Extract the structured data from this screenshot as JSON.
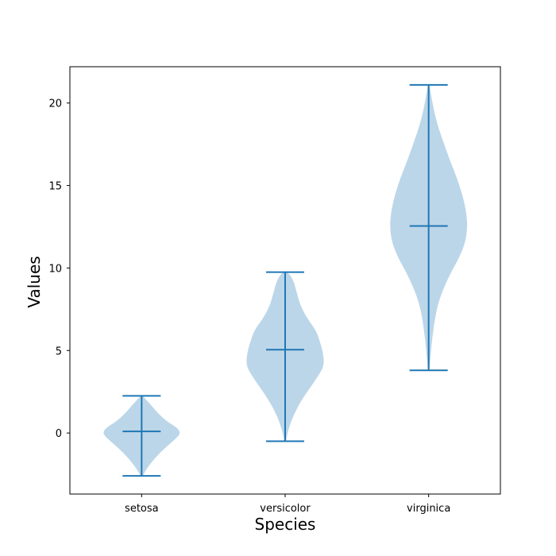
{
  "chart_data": {
    "type": "violin",
    "title": "",
    "xlabel": "Species",
    "ylabel": "Values",
    "categories": [
      "setosa",
      "versicolor",
      "virginica"
    ],
    "ylim": [
      -3.7,
      22.2
    ],
    "yticks": [
      0,
      5,
      10,
      15,
      20
    ],
    "ytick_labels": [
      "0",
      "5",
      "10",
      "15",
      "20"
    ],
    "grid": false,
    "colors": {
      "body": "#bcd6e9",
      "lines": "#1f77b4"
    },
    "series": [
      {
        "category": "setosa",
        "min": -2.6,
        "max": 2.25,
        "median": 0.1,
        "profile": [
          [
            -2.6,
            0.03
          ],
          [
            -2.2,
            0.12
          ],
          [
            -1.7,
            0.28
          ],
          [
            -1.2,
            0.47
          ],
          [
            -0.7,
            0.7
          ],
          [
            -0.3,
            0.9
          ],
          [
            0.0,
            1.0
          ],
          [
            0.3,
            0.92
          ],
          [
            0.6,
            0.72
          ],
          [
            0.9,
            0.55
          ],
          [
            1.3,
            0.38
          ],
          [
            1.7,
            0.24
          ],
          [
            2.0,
            0.12
          ],
          [
            2.25,
            0.03
          ]
        ]
      },
      {
        "category": "versicolor",
        "min": -0.5,
        "max": 9.75,
        "median": 5.05,
        "profile": [
          [
            -0.5,
            0.02
          ],
          [
            0.2,
            0.08
          ],
          [
            1.0,
            0.2
          ],
          [
            2.0,
            0.42
          ],
          [
            3.0,
            0.72
          ],
          [
            3.8,
            0.94
          ],
          [
            4.2,
            1.0
          ],
          [
            4.8,
            0.98
          ],
          [
            5.5,
            0.9
          ],
          [
            6.2,
            0.8
          ],
          [
            7.0,
            0.55
          ],
          [
            7.8,
            0.38
          ],
          [
            8.5,
            0.3
          ],
          [
            9.2,
            0.22
          ],
          [
            9.75,
            0.08
          ]
        ]
      },
      {
        "category": "virginica",
        "min": 3.8,
        "max": 21.1,
        "median": 12.55,
        "profile": [
          [
            3.8,
            0.02
          ],
          [
            5.0,
            0.06
          ],
          [
            6.5,
            0.13
          ],
          [
            8.0,
            0.25
          ],
          [
            9.5,
            0.52
          ],
          [
            10.5,
            0.76
          ],
          [
            11.5,
            0.94
          ],
          [
            12.5,
            1.0
          ],
          [
            13.5,
            0.96
          ],
          [
            14.5,
            0.86
          ],
          [
            15.5,
            0.72
          ],
          [
            16.5,
            0.55
          ],
          [
            17.5,
            0.4
          ],
          [
            18.5,
            0.25
          ],
          [
            19.5,
            0.14
          ],
          [
            20.5,
            0.06
          ],
          [
            21.1,
            0.02
          ]
        ]
      }
    ]
  }
}
